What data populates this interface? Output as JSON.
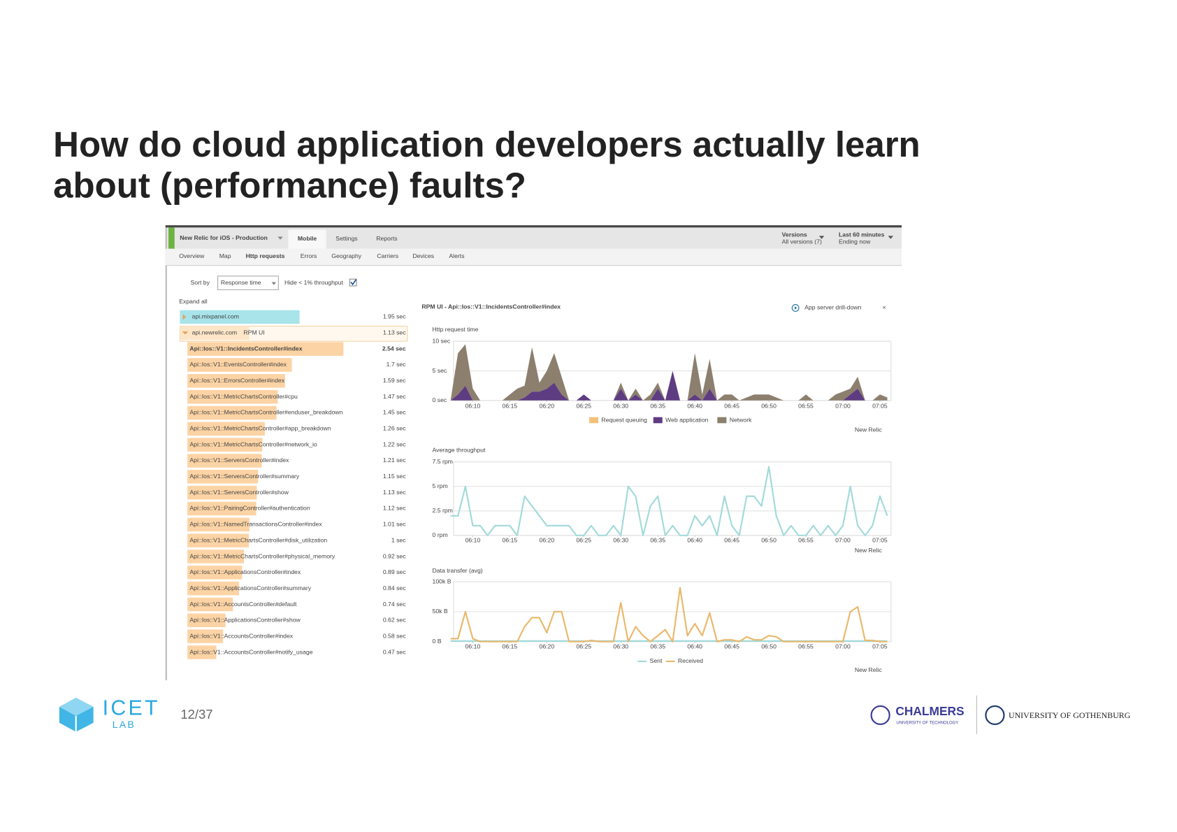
{
  "slide": {
    "title_lines": [
      "How do cloud application developers actually learn",
      "about (performance) faults?"
    ],
    "page": "12/37"
  },
  "logos": {
    "icet": "ICET",
    "lab": "LAB",
    "chalmers": "CHALMERS",
    "chalmers_sub": "UNIVERSITY OF TECHNOLOGY",
    "gothenburg": "UNIVERSITY OF GOTHENBURG"
  },
  "app": {
    "header": {
      "app_name": "New Relic for iOS - Production",
      "tabs": [
        "Mobile",
        "Settings",
        "Reports"
      ],
      "versions": "Versions",
      "versions_sub": "All versions (7)",
      "range": "Last 60 minutes",
      "range_sub": "Ending now"
    },
    "subnav": [
      "Overview",
      "Map",
      "Http requests",
      "Errors",
      "Geography",
      "Carriers",
      "Devices",
      "Alerts"
    ],
    "sort_by": "Sort by",
    "sort_value": "Response time",
    "hide": "Hide < 1% throughput",
    "expand": "Expand all",
    "rows": [
      {
        "name": "api.mixpanel.com",
        "value": 1.95,
        "label": "1.95 sec"
      },
      {
        "name": "api.newrelic.com",
        "tag": "RPM UI",
        "value": 1.13,
        "label": "1.13 sec"
      },
      {
        "name": "Api::Ios::V1::IncidentsController#index",
        "value": 2.54,
        "label": "2.54 sec"
      },
      {
        "name": "Api::Ios::V1::EventsController#index",
        "value": 1.7,
        "label": "1.7 sec"
      },
      {
        "name": "Api::Ios::V1::ErrorsController#index",
        "value": 1.59,
        "label": "1.59 sec"
      },
      {
        "name": "Api::Ios::V1::MetricChartsController#cpu",
        "value": 1.47,
        "label": "1.47 sec"
      },
      {
        "name": "Api::Ios::V1::MetricChartsController#enduser_breakdown",
        "value": 1.45,
        "label": "1.45 sec"
      },
      {
        "name": "Api::Ios::V1::MetricChartsController#app_breakdown",
        "value": 1.26,
        "label": "1.26 sec"
      },
      {
        "name": "Api::Ios::V1::MetricChartsController#network_io",
        "value": 1.22,
        "label": "1.22 sec"
      },
      {
        "name": "Api::Ios::V1::ServersController#index",
        "value": 1.21,
        "label": "1.21 sec"
      },
      {
        "name": "Api::Ios::V1::ServersController#summary",
        "value": 1.15,
        "label": "1.15 sec"
      },
      {
        "name": "Api::Ios::V1::ServersController#show",
        "value": 1.13,
        "label": "1.13 sec"
      },
      {
        "name": "Api::Ios::V1::PairingController#authentication",
        "value": 1.12,
        "label": "1.12 sec"
      },
      {
        "name": "Api::Ios::V1::NamedTransactionsController#index",
        "value": 1.01,
        "label": "1.01 sec"
      },
      {
        "name": "Api::Ios::V1::MetricChartsController#disk_utilization",
        "value": 1,
        "label": "1 sec"
      },
      {
        "name": "Api::Ios::V1::MetricChartsController#physical_memory",
        "value": 0.92,
        "label": "0.92 sec"
      },
      {
        "name": "Api::Ios::V1::ApplicationsController#index",
        "value": 0.89,
        "label": "0.89 sec"
      },
      {
        "name": "Api::Ios::V1::ApplicationsController#summary",
        "value": 0.84,
        "label": "0.84 sec"
      },
      {
        "name": "Api::Ios::V1::AccountsController#default",
        "value": 0.74,
        "label": "0.74 sec"
      },
      {
        "name": "Api::Ios::V1::ApplicationsController#show",
        "value": 0.62,
        "label": "0.62 sec"
      },
      {
        "name": "Api::Ios::V1::AccountsController#index",
        "value": 0.58,
        "label": "0.58 sec"
      },
      {
        "name": "Api::Ios::V1::AccountsController#notify_usage",
        "value": 0.47,
        "label": "0.47 sec"
      }
    ],
    "panel": {
      "title": "RPM UI - Api::Ios::V1::IncidentsController#index",
      "drilldown": "App server drill-down",
      "close": "×"
    },
    "watermark": "New Relic"
  },
  "chart_data": [
    {
      "type": "area",
      "stacked": true,
      "title": "Http request time",
      "x": [
        7,
        8,
        9,
        10,
        11,
        12,
        13,
        14,
        15,
        16,
        17,
        18,
        19,
        20,
        21,
        22,
        23,
        24,
        25,
        26,
        27,
        28,
        29,
        30,
        31,
        32,
        33,
        34,
        35,
        36,
        37,
        38,
        39,
        40,
        41,
        42,
        43,
        44,
        45,
        46,
        47,
        48,
        49,
        50,
        51,
        52,
        53,
        54,
        55,
        56,
        57,
        58,
        59,
        60,
        61,
        62,
        63,
        64,
        65,
        66
      ],
      "xlim": [
        7.4,
        66.5
      ],
      "xticks": [
        {
          "value": 10,
          "label": "06:10"
        },
        {
          "value": 15,
          "label": "06:15"
        },
        {
          "value": 20,
          "label": "06:20"
        },
        {
          "value": 25,
          "label": "06:25"
        },
        {
          "value": 30,
          "label": "06:30"
        },
        {
          "value": 35,
          "label": "06:35"
        },
        {
          "value": 40,
          "label": "06:40"
        },
        {
          "value": 45,
          "label": "06:45"
        },
        {
          "value": 50,
          "label": "06:50"
        },
        {
          "value": 55,
          "label": "06:55"
        },
        {
          "value": 60,
          "label": "07:00"
        },
        {
          "value": 65,
          "label": "07:05"
        }
      ],
      "ylim": [
        0,
        10
      ],
      "yticks": [
        {
          "value": 0,
          "label": "0 sec"
        },
        {
          "value": 5,
          "label": "5 sec"
        },
        {
          "value": 10,
          "label": "10 sec"
        }
      ],
      "grid": true,
      "legend": "bottom",
      "series": [
        {
          "name": "Request queuing",
          "color": "#f2c27b",
          "values": [
            0,
            0,
            0,
            0,
            0,
            0,
            0,
            0,
            0,
            0,
            0,
            0,
            0,
            0,
            0,
            0,
            0,
            0,
            0,
            0,
            0,
            0,
            0,
            0,
            0,
            0,
            0,
            0,
            0,
            0,
            0,
            0,
            0,
            0,
            0,
            0,
            0,
            0,
            0,
            0,
            0,
            0,
            0,
            0,
            0,
            0,
            0,
            0,
            0,
            0,
            0,
            0,
            0,
            0,
            0,
            0,
            0,
            0,
            0,
            0
          ]
        },
        {
          "name": "Web application",
          "color": "#5e3c82",
          "values": [
            0,
            1,
            2.5,
            0,
            0,
            0,
            0,
            0,
            0,
            0,
            0.5,
            1.5,
            1.5,
            2,
            3,
            1,
            0,
            0,
            1,
            0,
            0,
            0,
            0,
            2,
            0,
            1,
            0,
            0,
            2,
            0,
            5,
            0,
            0,
            1,
            0,
            2,
            0,
            0,
            0,
            0,
            0,
            0,
            0,
            0,
            0,
            0,
            0,
            0,
            0,
            0,
            0,
            0,
            0,
            0,
            1,
            2,
            0,
            0,
            0,
            0
          ]
        },
        {
          "name": "Network",
          "color": "#8c7f6e",
          "values": [
            0,
            7,
            7,
            2,
            0,
            0,
            0,
            0,
            1,
            2,
            2,
            7.5,
            1.5,
            3,
            5,
            3,
            0,
            0,
            0,
            0,
            0,
            0,
            0,
            1,
            0,
            1,
            0,
            1,
            1,
            0,
            0,
            0,
            0,
            7,
            1,
            5,
            0,
            1,
            1,
            0,
            0.5,
            1,
            1,
            1,
            0.5,
            0,
            0,
            0,
            1,
            0,
            0,
            0,
            1,
            1.5,
            1,
            2,
            0,
            0,
            1,
            0.5
          ]
        }
      ]
    },
    {
      "type": "line",
      "title": "Average throughput",
      "x": [
        7,
        8,
        9,
        10,
        11,
        12,
        13,
        14,
        15,
        16,
        17,
        18,
        19,
        20,
        21,
        22,
        23,
        24,
        25,
        26,
        27,
        28,
        29,
        30,
        31,
        32,
        33,
        34,
        35,
        36,
        37,
        38,
        39,
        40,
        41,
        42,
        43,
        44,
        45,
        46,
        47,
        48,
        49,
        50,
        51,
        52,
        53,
        54,
        55,
        56,
        57,
        58,
        59,
        60,
        61,
        62,
        63,
        64,
        65,
        66
      ],
      "xlim": [
        7.4,
        66.5
      ],
      "xticks": [
        {
          "value": 10,
          "label": "06:10"
        },
        {
          "value": 15,
          "label": "06:15"
        },
        {
          "value": 20,
          "label": "06:20"
        },
        {
          "value": 25,
          "label": "06:25"
        },
        {
          "value": 30,
          "label": "06:30"
        },
        {
          "value": 35,
          "label": "06:35"
        },
        {
          "value": 40,
          "label": "06:40"
        },
        {
          "value": 45,
          "label": "06:45"
        },
        {
          "value": 50,
          "label": "06:50"
        },
        {
          "value": 55,
          "label": "06:55"
        },
        {
          "value": 60,
          "label": "07:00"
        },
        {
          "value": 65,
          "label": "07:05"
        }
      ],
      "ylim": [
        0,
        7.5
      ],
      "yticks": [
        {
          "value": 0,
          "label": "0 rpm"
        },
        {
          "value": 2.5,
          "label": "2.5 rpm"
        },
        {
          "value": 5,
          "label": "5 rpm"
        },
        {
          "value": 7.5,
          "label": "7.5 rpm"
        }
      ],
      "grid": true,
      "color": "#a3dada",
      "values": [
        2,
        2,
        5,
        1,
        1,
        0,
        1,
        1,
        1,
        0,
        4,
        3,
        2,
        1,
        1,
        1,
        1,
        0,
        0,
        1,
        0,
        0,
        1,
        0,
        5,
        4,
        0,
        3,
        4,
        0,
        1,
        0,
        0,
        2,
        1,
        2,
        0,
        4,
        1,
        0,
        4,
        4,
        3,
        7,
        2,
        0,
        1,
        0,
        0,
        1,
        0,
        1,
        0,
        1,
        5,
        1,
        0,
        1,
        4,
        2
      ]
    },
    {
      "type": "line",
      "title": "Data transfer (avg)",
      "x": [
        7,
        8,
        9,
        10,
        11,
        12,
        13,
        14,
        15,
        16,
        17,
        18,
        19,
        20,
        21,
        22,
        23,
        24,
        25,
        26,
        27,
        28,
        29,
        30,
        31,
        32,
        33,
        34,
        35,
        36,
        37,
        38,
        39,
        40,
        41,
        42,
        43,
        44,
        45,
        46,
        47,
        48,
        49,
        50,
        51,
        52,
        53,
        54,
        55,
        56,
        57,
        58,
        59,
        60,
        61,
        62,
        63,
        64,
        65,
        66
      ],
      "xlim": [
        7.4,
        66.5
      ],
      "xticks": [
        {
          "value": 10,
          "label": "06:10"
        },
        {
          "value": 15,
          "label": "06:15"
        },
        {
          "value": 20,
          "label": "06:20"
        },
        {
          "value": 25,
          "label": "06:25"
        },
        {
          "value": 30,
          "label": "06:30"
        },
        {
          "value": 35,
          "label": "06:35"
        },
        {
          "value": 40,
          "label": "06:40"
        },
        {
          "value": 45,
          "label": "06:45"
        },
        {
          "value": 50,
          "label": "06:50"
        },
        {
          "value": 55,
          "label": "06:55"
        },
        {
          "value": 60,
          "label": "07:00"
        },
        {
          "value": 65,
          "label": "07:05"
        }
      ],
      "ylim": [
        0,
        100000
      ],
      "yticks": [
        {
          "value": 0,
          "label": "0 B"
        },
        {
          "value": 50000,
          "label": "50k B"
        },
        {
          "value": 100000,
          "label": "100k B"
        }
      ],
      "grid": true,
      "legend": "bottom",
      "series": [
        {
          "name": "Sent",
          "color": "#a3dada",
          "values": [
            1000,
            1000,
            1000,
            1000,
            1000,
            1000,
            1000,
            1000,
            1000,
            1000,
            1000,
            1000,
            1000,
            1000,
            1000,
            1000,
            1000,
            1000,
            1000,
            1000,
            1000,
            1000,
            1000,
            1000,
            1000,
            1000,
            1000,
            1000,
            1000,
            1000,
            1000,
            1000,
            1000,
            1000,
            1000,
            1000,
            1000,
            1000,
            1000,
            1000,
            1000,
            1000,
            1000,
            1000,
            1000,
            1000,
            1000,
            1000,
            1000,
            1000,
            1000,
            1000,
            1000,
            1000,
            1000,
            1000,
            1000,
            1000,
            1000,
            1000
          ]
        },
        {
          "name": "Received",
          "color": "#eab86c",
          "values": [
            5000,
            5000,
            50000,
            5000,
            0,
            0,
            0,
            0,
            0,
            0,
            25000,
            40000,
            40000,
            15000,
            50000,
            50000,
            0,
            0,
            0,
            2000,
            0,
            0,
            0,
            65000,
            0,
            25000,
            10000,
            0,
            10000,
            20000,
            0,
            90000,
            10000,
            30000,
            10000,
            48000,
            0,
            3000,
            3000,
            0,
            8000,
            3000,
            3000,
            10000,
            8000,
            0,
            0,
            0,
            0,
            0,
            0,
            0,
            0,
            0,
            50000,
            58000,
            2000,
            2000,
            0,
            0
          ]
        }
      ]
    }
  ]
}
